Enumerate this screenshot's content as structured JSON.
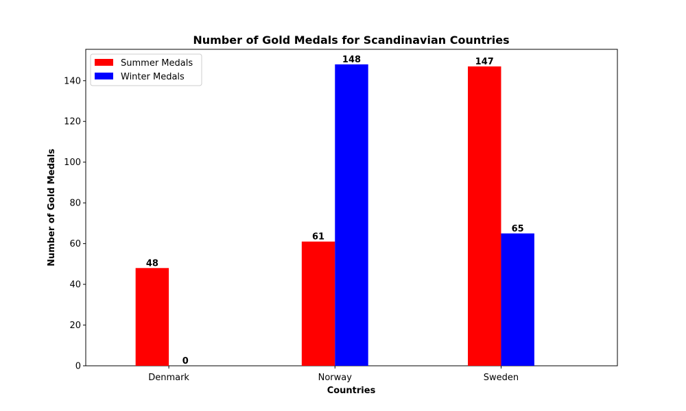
{
  "chart_data": {
    "type": "bar",
    "title": "Number of Gold Medals for Scandinavian Countries",
    "xlabel": "Countries",
    "ylabel": "Number of Gold Medals",
    "categories": [
      "Denmark",
      "Norway",
      "Sweden"
    ],
    "series": [
      {
        "name": "Summer Medals",
        "values": [
          48,
          61,
          147
        ],
        "color": "#ff0000"
      },
      {
        "name": "Winter Medals",
        "values": [
          0,
          148,
          65
        ],
        "color": "#0000ff"
      }
    ],
    "ylim": [
      0,
      155.4
    ],
    "yticks": [
      0,
      20,
      40,
      60,
      80,
      100,
      120,
      140
    ],
    "grid": false,
    "legend_position": "top-left",
    "data_labels": true
  }
}
